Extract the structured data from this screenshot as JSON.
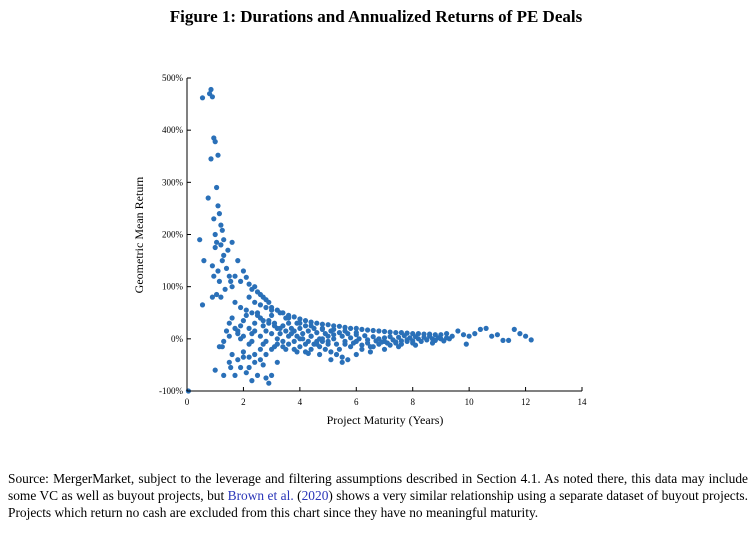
{
  "figure": {
    "title": "Figure 1: Durations and Annualized Returns of PE Deals"
  },
  "caption": {
    "part1": "Source: MergerMarket, subject to the leverage and filtering assumptions described in Section 4.1. As noted there, this data may include some VC as well as buyout projects, but ",
    "cite_authors": "Brown et al.",
    "cite_open": " (",
    "cite_year": "2020",
    "cite_close": ")",
    "part2": " shows a very similar relationship using a separate dataset of buyout projects. Projects which return no cash are excluded from this chart since they have no meaningful maturity."
  },
  "chart_data": {
    "type": "scatter",
    "title": "",
    "xlabel": "Project Maturity (Years)",
    "ylabel": "Geometric Mean Return",
    "xlim": [
      0,
      14
    ],
    "ylim": [
      -100,
      500
    ],
    "xticks": [
      "0",
      "2",
      "4",
      "6",
      "8",
      "10",
      "12",
      "14"
    ],
    "yticks": [
      "-100%",
      "0%",
      "100%",
      "200%",
      "300%",
      "400%",
      "500%"
    ],
    "marker_color": "#2a70b8",
    "grid": false,
    "legend": "none",
    "points": [
      [
        0.05,
        -100
      ],
      [
        0.45,
        190
      ],
      [
        0.55,
        462
      ],
      [
        0.6,
        150
      ],
      [
        0.55,
        65
      ],
      [
        0.8,
        470
      ],
      [
        0.85,
        478
      ],
      [
        0.85,
        345
      ],
      [
        0.9,
        464
      ],
      [
        0.75,
        270
      ],
      [
        0.95,
        385
      ],
      [
        1.0,
        378
      ],
      [
        1.1,
        352
      ],
      [
        1.05,
        290
      ],
      [
        0.95,
        230
      ],
      [
        1.0,
        200
      ],
      [
        1.1,
        255
      ],
      [
        1.15,
        240
      ],
      [
        1.2,
        218
      ],
      [
        1.25,
        208
      ],
      [
        1.3,
        190
      ],
      [
        1.2,
        180
      ],
      [
        1.05,
        185
      ],
      [
        1.0,
        175
      ],
      [
        0.9,
        140
      ],
      [
        0.95,
        120
      ],
      [
        1.1,
        130
      ],
      [
        1.15,
        110
      ],
      [
        1.25,
        150
      ],
      [
        1.3,
        160
      ],
      [
        1.4,
        135
      ],
      [
        1.45,
        170
      ],
      [
        1.5,
        120
      ],
      [
        1.55,
        110
      ],
      [
        1.6,
        100
      ],
      [
        1.35,
        95
      ],
      [
        1.2,
        80
      ],
      [
        0.9,
        80
      ],
      [
        1.05,
        85
      ],
      [
        1.15,
        -15
      ],
      [
        1.25,
        -15
      ],
      [
        1.3,
        -5
      ],
      [
        1.0,
        -60
      ],
      [
        1.3,
        -70
      ],
      [
        1.5,
        -45
      ],
      [
        1.6,
        -30
      ],
      [
        1.7,
        -70
      ],
      [
        1.55,
        -55
      ],
      [
        1.9,
        -55
      ],
      [
        2.1,
        -65
      ],
      [
        2.2,
        -55
      ],
      [
        2.3,
        -80
      ],
      [
        2.5,
        -70
      ],
      [
        2.7,
        -50
      ],
      [
        2.8,
        -75
      ],
      [
        2.9,
        -85
      ],
      [
        3.0,
        -70
      ],
      [
        3.2,
        -45
      ],
      [
        2.6,
        -20
      ],
      [
        2.4,
        -30
      ],
      [
        2.0,
        -35
      ],
      [
        1.8,
        -40
      ],
      [
        1.6,
        185
      ],
      [
        1.8,
        150
      ],
      [
        1.7,
        120
      ],
      [
        1.9,
        110
      ],
      [
        2.0,
        130
      ],
      [
        2.1,
        118
      ],
      [
        2.2,
        105
      ],
      [
        2.3,
        95
      ],
      [
        2.4,
        100
      ],
      [
        2.5,
        90
      ],
      [
        2.6,
        85
      ],
      [
        2.7,
        80
      ],
      [
        2.8,
        75
      ],
      [
        2.9,
        70
      ],
      [
        3.0,
        60
      ],
      [
        3.2,
        55
      ],
      [
        3.4,
        50
      ],
      [
        3.6,
        45
      ],
      [
        3.8,
        42
      ],
      [
        4.0,
        38
      ],
      [
        4.2,
        35
      ],
      [
        4.4,
        32
      ],
      [
        4.6,
        30
      ],
      [
        4.8,
        28
      ],
      [
        5.0,
        27
      ],
      [
        5.2,
        25
      ],
      [
        5.4,
        24
      ],
      [
        5.6,
        22
      ],
      [
        5.8,
        20
      ],
      [
        6.0,
        20
      ],
      [
        6.2,
        18
      ],
      [
        6.4,
        17
      ],
      [
        6.6,
        16
      ],
      [
        6.8,
        15
      ],
      [
        7.0,
        14
      ],
      [
        7.2,
        13
      ],
      [
        7.4,
        12
      ],
      [
        7.6,
        12
      ],
      [
        7.8,
        11
      ],
      [
        8.0,
        10
      ],
      [
        8.2,
        10
      ],
      [
        8.4,
        9
      ],
      [
        8.6,
        9
      ],
      [
        8.8,
        8
      ],
      [
        9.0,
        8
      ],
      [
        9.2,
        10
      ],
      [
        9.4,
        5
      ],
      [
        9.6,
        15
      ],
      [
        9.8,
        8
      ],
      [
        10.0,
        5
      ],
      [
        10.2,
        10
      ],
      [
        10.4,
        18
      ],
      [
        10.6,
        20
      ],
      [
        10.8,
        5
      ],
      [
        11.0,
        8
      ],
      [
        11.2,
        -3
      ],
      [
        11.4,
        -3
      ],
      [
        11.6,
        18
      ],
      [
        11.8,
        10
      ],
      [
        12.0,
        5
      ],
      [
        12.2,
        -2
      ],
      [
        9.9,
        -10
      ],
      [
        9.3,
        0
      ],
      [
        8.7,
        -8
      ],
      [
        8.1,
        -12
      ],
      [
        7.5,
        -15
      ],
      [
        7.0,
        -20
      ],
      [
        6.5,
        -25
      ],
      [
        6.0,
        -30
      ],
      [
        5.5,
        -35
      ],
      [
        5.1,
        -40
      ],
      [
        4.7,
        -30
      ],
      [
        4.3,
        -28
      ],
      [
        3.9,
        -25
      ],
      [
        3.5,
        -20
      ],
      [
        3.1,
        -15
      ],
      [
        2.7,
        -10
      ],
      [
        2.3,
        -5
      ],
      [
        1.9,
        0
      ],
      [
        1.5,
        5
      ],
      [
        1.4,
        15
      ],
      [
        1.5,
        30
      ],
      [
        1.6,
        40
      ],
      [
        1.7,
        20
      ],
      [
        1.8,
        10
      ],
      [
        1.9,
        25
      ],
      [
        2.0,
        35
      ],
      [
        2.1,
        45
      ],
      [
        2.2,
        20
      ],
      [
        2.3,
        10
      ],
      [
        2.4,
        30
      ],
      [
        2.5,
        50
      ],
      [
        2.6,
        40
      ],
      [
        2.7,
        25
      ],
      [
        2.8,
        15
      ],
      [
        2.9,
        35
      ],
      [
        3.0,
        45
      ],
      [
        3.1,
        30
      ],
      [
        3.2,
        20
      ],
      [
        3.3,
        10
      ],
      [
        3.4,
        25
      ],
      [
        3.5,
        40
      ],
      [
        3.6,
        30
      ],
      [
        3.7,
        20
      ],
      [
        3.8,
        15
      ],
      [
        3.9,
        30
      ],
      [
        4.0,
        20
      ],
      [
        4.1,
        10
      ],
      [
        4.2,
        25
      ],
      [
        4.3,
        15
      ],
      [
        4.4,
        5
      ],
      [
        4.5,
        20
      ],
      [
        4.6,
        12
      ],
      [
        4.7,
        0
      ],
      [
        4.8,
        18
      ],
      [
        4.9,
        10
      ],
      [
        5.0,
        -5
      ],
      [
        5.1,
        15
      ],
      [
        5.2,
        8
      ],
      [
        5.3,
        -10
      ],
      [
        5.4,
        12
      ],
      [
        5.5,
        5
      ],
      [
        5.6,
        -5
      ],
      [
        5.7,
        10
      ],
      [
        5.8,
        2
      ],
      [
        5.9,
        -8
      ],
      [
        6.0,
        8
      ],
      [
        6.1,
        0
      ],
      [
        6.2,
        -12
      ],
      [
        6.3,
        6
      ],
      [
        6.4,
        -2
      ],
      [
        6.5,
        -15
      ],
      [
        6.6,
        4
      ],
      [
        6.7,
        -4
      ],
      [
        6.8,
        0
      ],
      [
        6.9,
        -6
      ],
      [
        7.0,
        2
      ],
      [
        7.1,
        -8
      ],
      [
        7.2,
        4
      ],
      [
        7.3,
        -2
      ],
      [
        7.4,
        -6
      ],
      [
        7.5,
        3
      ],
      [
        7.6,
        -4
      ],
      [
        7.7,
        6
      ],
      [
        7.8,
        -2
      ],
      [
        7.9,
        2
      ],
      [
        8.0,
        -4
      ],
      [
        8.1,
        4
      ],
      [
        8.2,
        0
      ],
      [
        8.3,
        -5
      ],
      [
        8.4,
        3
      ],
      [
        8.5,
        -2
      ],
      [
        8.6,
        5
      ],
      [
        8.7,
        0
      ],
      [
        8.8,
        -3
      ],
      [
        8.9,
        2
      ],
      [
        9.0,
        0
      ],
      [
        9.1,
        -4
      ],
      [
        9.2,
        2
      ],
      [
        2.2,
        80
      ],
      [
        2.4,
        70
      ],
      [
        2.6,
        65
      ],
      [
        2.8,
        60
      ],
      [
        3.0,
        55
      ],
      [
        3.3,
        50
      ],
      [
        3.6,
        40
      ],
      [
        4.0,
        30
      ],
      [
        4.4,
        25
      ],
      [
        4.8,
        20
      ],
      [
        5.2,
        18
      ],
      [
        5.6,
        15
      ],
      [
        6.0,
        12
      ],
      [
        1.7,
        70
      ],
      [
        1.9,
        60
      ],
      [
        2.1,
        55
      ],
      [
        2.3,
        50
      ],
      [
        2.5,
        45
      ],
      [
        2.7,
        35
      ],
      [
        2.9,
        30
      ],
      [
        3.1,
        25
      ],
      [
        3.3,
        20
      ],
      [
        3.5,
        15
      ],
      [
        3.7,
        10
      ],
      [
        3.9,
        5
      ],
      [
        4.1,
        0
      ],
      [
        4.3,
        -5
      ],
      [
        4.5,
        -10
      ],
      [
        4.7,
        -15
      ],
      [
        4.9,
        -20
      ],
      [
        5.1,
        -25
      ],
      [
        5.3,
        -30
      ],
      [
        5.5,
        -45
      ],
      [
        5.7,
        -40
      ],
      [
        2.0,
        -25
      ],
      [
        2.2,
        -35
      ],
      [
        2.4,
        -45
      ],
      [
        2.6,
        -40
      ],
      [
        2.8,
        -30
      ],
      [
        3.0,
        -20
      ],
      [
        3.2,
        -10
      ],
      [
        3.4,
        -5
      ],
      [
        3.6,
        -10
      ],
      [
        3.8,
        -20
      ],
      [
        4.0,
        -15
      ],
      [
        4.2,
        -25
      ],
      [
        4.4,
        -20
      ],
      [
        4.6,
        -10
      ],
      [
        4.8,
        -5
      ],
      [
        5.0,
        5
      ],
      [
        1.8,
        15
      ],
      [
        2.0,
        5
      ],
      [
        2.2,
        -10
      ],
      [
        2.4,
        15
      ],
      [
        2.6,
        5
      ],
      [
        2.8,
        -5
      ],
      [
        3.0,
        10
      ],
      [
        3.2,
        0
      ],
      [
        3.4,
        -15
      ],
      [
        3.6,
        5
      ],
      [
        3.8,
        -5
      ],
      [
        4.0,
        0
      ],
      [
        4.2,
        -10
      ],
      [
        4.4,
        5
      ],
      [
        4.6,
        -5
      ],
      [
        4.8,
        0
      ],
      [
        5.0,
        -10
      ],
      [
        5.2,
        0
      ],
      [
        5.4,
        -20
      ],
      [
        5.6,
        -10
      ],
      [
        5.8,
        -15
      ],
      [
        6.0,
        -5
      ],
      [
        6.2,
        -20
      ],
      [
        6.4,
        -8
      ],
      [
        6.6,
        -15
      ],
      [
        6.8,
        -10
      ],
      [
        7.0,
        -5
      ],
      [
        7.2,
        -12
      ],
      [
        7.4,
        -8
      ],
      [
        7.6,
        -10
      ],
      [
        7.8,
        -5
      ],
      [
        8.0,
        -8
      ]
    ]
  }
}
